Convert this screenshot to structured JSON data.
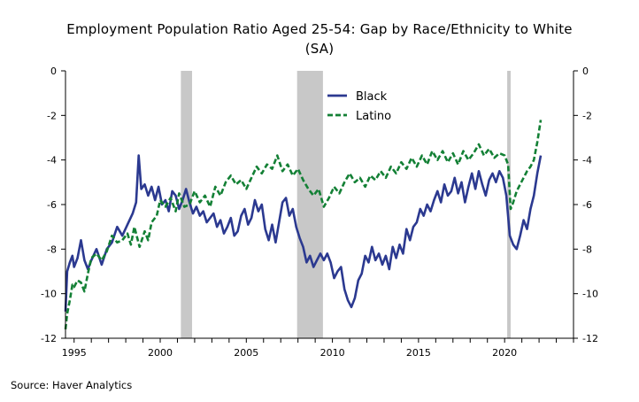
{
  "chart_data": {
    "type": "line",
    "title_line1": "Employment Population Ratio Aged 25-54: Gap by Race/Ethnicity to White",
    "title_line2": "(SA)",
    "source": "Source:  Haver Analytics",
    "ylim": [
      -12,
      0
    ],
    "y_ticks": [
      0,
      -2,
      -4,
      -6,
      -8,
      -10,
      -12
    ],
    "xlim": [
      1994.5,
      2024.0
    ],
    "x_ticks": [
      1995,
      2000,
      2005,
      2010,
      2015,
      2020
    ],
    "grid": false,
    "legend_placement": "top-center",
    "recessions": [
      [
        2001.2,
        2001.85
      ],
      [
        2007.95,
        2009.45
      ],
      [
        2020.15,
        2020.35
      ]
    ],
    "recession_color": "#c8c8c8",
    "series": [
      {
        "name": "Black",
        "color": "#2b3990",
        "dash": "solid",
        "points": [
          [
            1994.5,
            -10.8
          ],
          [
            1994.6,
            -9.0
          ],
          [
            1994.75,
            -8.6
          ],
          [
            1994.9,
            -8.3
          ],
          [
            1995.0,
            -8.8
          ],
          [
            1995.2,
            -8.4
          ],
          [
            1995.4,
            -7.6
          ],
          [
            1995.6,
            -8.5
          ],
          [
            1995.8,
            -8.9
          ],
          [
            1996.0,
            -8.5
          ],
          [
            1996.3,
            -8.0
          ],
          [
            1996.6,
            -8.7
          ],
          [
            1996.9,
            -8.0
          ],
          [
            1997.2,
            -7.7
          ],
          [
            1997.5,
            -7.0
          ],
          [
            1997.8,
            -7.4
          ],
          [
            1998.1,
            -6.9
          ],
          [
            1998.4,
            -6.4
          ],
          [
            1998.6,
            -5.9
          ],
          [
            1998.75,
            -3.8
          ],
          [
            1998.9,
            -5.3
          ],
          [
            1999.1,
            -5.1
          ],
          [
            1999.3,
            -5.6
          ],
          [
            1999.5,
            -5.2
          ],
          [
            1999.7,
            -5.8
          ],
          [
            1999.9,
            -5.2
          ],
          [
            2000.1,
            -6.0
          ],
          [
            2000.3,
            -5.8
          ],
          [
            2000.5,
            -6.3
          ],
          [
            2000.7,
            -5.4
          ],
          [
            2000.9,
            -5.6
          ],
          [
            2001.1,
            -6.2
          ],
          [
            2001.3,
            -5.8
          ],
          [
            2001.5,
            -5.3
          ],
          [
            2001.7,
            -5.9
          ],
          [
            2001.9,
            -6.4
          ],
          [
            2002.1,
            -6.1
          ],
          [
            2002.3,
            -6.5
          ],
          [
            2002.5,
            -6.3
          ],
          [
            2002.7,
            -6.8
          ],
          [
            2002.9,
            -6.6
          ],
          [
            2003.1,
            -6.4
          ],
          [
            2003.3,
            -7.0
          ],
          [
            2003.5,
            -6.7
          ],
          [
            2003.7,
            -7.3
          ],
          [
            2003.9,
            -7.0
          ],
          [
            2004.1,
            -6.6
          ],
          [
            2004.3,
            -7.4
          ],
          [
            2004.5,
            -7.2
          ],
          [
            2004.7,
            -6.5
          ],
          [
            2004.9,
            -6.2
          ],
          [
            2005.1,
            -6.9
          ],
          [
            2005.3,
            -6.6
          ],
          [
            2005.5,
            -5.8
          ],
          [
            2005.7,
            -6.3
          ],
          [
            2005.9,
            -6.0
          ],
          [
            2006.1,
            -7.1
          ],
          [
            2006.3,
            -7.6
          ],
          [
            2006.5,
            -6.9
          ],
          [
            2006.7,
            -7.7
          ],
          [
            2006.9,
            -6.8
          ],
          [
            2007.1,
            -5.9
          ],
          [
            2007.3,
            -5.7
          ],
          [
            2007.5,
            -6.5
          ],
          [
            2007.7,
            -6.2
          ],
          [
            2007.9,
            -7.0
          ],
          [
            2008.1,
            -7.5
          ],
          [
            2008.3,
            -7.9
          ],
          [
            2008.5,
            -8.6
          ],
          [
            2008.7,
            -8.3
          ],
          [
            2008.9,
            -8.8
          ],
          [
            2009.1,
            -8.5
          ],
          [
            2009.3,
            -8.2
          ],
          [
            2009.5,
            -8.5
          ],
          [
            2009.7,
            -8.2
          ],
          [
            2009.9,
            -8.6
          ],
          [
            2010.1,
            -9.3
          ],
          [
            2010.3,
            -9.0
          ],
          [
            2010.5,
            -8.8
          ],
          [
            2010.7,
            -9.8
          ],
          [
            2010.9,
            -10.3
          ],
          [
            2011.1,
            -10.6
          ],
          [
            2011.3,
            -10.2
          ],
          [
            2011.5,
            -9.4
          ],
          [
            2011.7,
            -9.1
          ],
          [
            2011.9,
            -8.3
          ],
          [
            2012.1,
            -8.6
          ],
          [
            2012.3,
            -7.9
          ],
          [
            2012.5,
            -8.5
          ],
          [
            2012.7,
            -8.2
          ],
          [
            2012.9,
            -8.7
          ],
          [
            2013.1,
            -8.3
          ],
          [
            2013.3,
            -8.9
          ],
          [
            2013.5,
            -7.9
          ],
          [
            2013.7,
            -8.4
          ],
          [
            2013.9,
            -7.8
          ],
          [
            2014.1,
            -8.2
          ],
          [
            2014.3,
            -7.1
          ],
          [
            2014.5,
            -7.6
          ],
          [
            2014.7,
            -7.0
          ],
          [
            2014.9,
            -6.8
          ],
          [
            2015.1,
            -6.2
          ],
          [
            2015.3,
            -6.5
          ],
          [
            2015.5,
            -6.0
          ],
          [
            2015.7,
            -6.3
          ],
          [
            2015.9,
            -5.8
          ],
          [
            2016.1,
            -5.4
          ],
          [
            2016.3,
            -5.9
          ],
          [
            2016.5,
            -5.1
          ],
          [
            2016.7,
            -5.6
          ],
          [
            2016.9,
            -5.4
          ],
          [
            2017.1,
            -4.8
          ],
          [
            2017.3,
            -5.5
          ],
          [
            2017.5,
            -5.0
          ],
          [
            2017.7,
            -5.9
          ],
          [
            2017.9,
            -5.2
          ],
          [
            2018.1,
            -4.6
          ],
          [
            2018.3,
            -5.3
          ],
          [
            2018.5,
            -4.5
          ],
          [
            2018.7,
            -5.1
          ],
          [
            2018.9,
            -5.6
          ],
          [
            2019.1,
            -4.9
          ],
          [
            2019.3,
            -4.6
          ],
          [
            2019.5,
            -5.0
          ],
          [
            2019.7,
            -4.5
          ],
          [
            2019.9,
            -4.8
          ],
          [
            2020.1,
            -5.6
          ],
          [
            2020.3,
            -7.4
          ],
          [
            2020.5,
            -7.8
          ],
          [
            2020.7,
            -8.0
          ],
          [
            2020.9,
            -7.4
          ],
          [
            2021.1,
            -6.7
          ],
          [
            2021.3,
            -7.1
          ],
          [
            2021.5,
            -6.2
          ],
          [
            2021.7,
            -5.6
          ],
          [
            2021.9,
            -4.6
          ],
          [
            2022.1,
            -3.8
          ]
        ]
      },
      {
        "name": "Latino",
        "color": "#138035",
        "dash": "dashed",
        "points": [
          [
            1994.5,
            -11.6
          ],
          [
            1994.6,
            -10.9
          ],
          [
            1994.75,
            -10.3
          ],
          [
            1994.9,
            -9.6
          ],
          [
            1995.0,
            -9.7
          ],
          [
            1995.2,
            -9.4
          ],
          [
            1995.4,
            -9.5
          ],
          [
            1995.6,
            -9.9
          ],
          [
            1995.8,
            -9.1
          ],
          [
            1996.0,
            -8.4
          ],
          [
            1996.3,
            -8.2
          ],
          [
            1996.6,
            -8.5
          ],
          [
            1996.9,
            -8.1
          ],
          [
            1997.2,
            -7.4
          ],
          [
            1997.5,
            -7.7
          ],
          [
            1997.8,
            -7.6
          ],
          [
            1998.1,
            -7.3
          ],
          [
            1998.3,
            -7.8
          ],
          [
            1998.5,
            -7.0
          ],
          [
            1998.8,
            -7.9
          ],
          [
            1999.1,
            -7.2
          ],
          [
            1999.3,
            -7.6
          ],
          [
            1999.5,
            -6.8
          ],
          [
            1999.8,
            -6.5
          ],
          [
            2000.0,
            -5.8
          ],
          [
            2000.3,
            -6.1
          ],
          [
            2000.6,
            -5.7
          ],
          [
            2000.9,
            -6.3
          ],
          [
            2001.1,
            -5.5
          ],
          [
            2001.4,
            -6.1
          ],
          [
            2001.7,
            -6.0
          ],
          [
            2002.0,
            -5.4
          ],
          [
            2002.3,
            -5.9
          ],
          [
            2002.6,
            -5.6
          ],
          [
            2002.9,
            -6.1
          ],
          [
            2003.2,
            -5.2
          ],
          [
            2003.5,
            -5.6
          ],
          [
            2003.8,
            -5.0
          ],
          [
            2004.1,
            -4.7
          ],
          [
            2004.4,
            -5.1
          ],
          [
            2004.7,
            -4.9
          ],
          [
            2005.0,
            -5.3
          ],
          [
            2005.3,
            -4.8
          ],
          [
            2005.6,
            -4.3
          ],
          [
            2005.9,
            -4.6
          ],
          [
            2006.2,
            -4.2
          ],
          [
            2006.5,
            -4.4
          ],
          [
            2006.8,
            -3.8
          ],
          [
            2007.1,
            -4.5
          ],
          [
            2007.4,
            -4.2
          ],
          [
            2007.7,
            -4.7
          ],
          [
            2008.0,
            -4.4
          ],
          [
            2008.3,
            -4.9
          ],
          [
            2008.6,
            -5.3
          ],
          [
            2008.9,
            -5.6
          ],
          [
            2009.2,
            -5.3
          ],
          [
            2009.5,
            -6.1
          ],
          [
            2009.8,
            -5.7
          ],
          [
            2010.1,
            -5.2
          ],
          [
            2010.4,
            -5.5
          ],
          [
            2010.7,
            -5.0
          ],
          [
            2011.0,
            -4.6
          ],
          [
            2011.3,
            -5.0
          ],
          [
            2011.6,
            -4.8
          ],
          [
            2011.9,
            -5.2
          ],
          [
            2012.2,
            -4.7
          ],
          [
            2012.5,
            -4.9
          ],
          [
            2012.8,
            -4.5
          ],
          [
            2013.1,
            -4.8
          ],
          [
            2013.4,
            -4.3
          ],
          [
            2013.7,
            -4.6
          ],
          [
            2014.0,
            -4.1
          ],
          [
            2014.3,
            -4.4
          ],
          [
            2014.6,
            -3.9
          ],
          [
            2014.9,
            -4.3
          ],
          [
            2015.2,
            -3.8
          ],
          [
            2015.5,
            -4.2
          ],
          [
            2015.8,
            -3.6
          ],
          [
            2016.1,
            -4.0
          ],
          [
            2016.4,
            -3.6
          ],
          [
            2016.7,
            -4.1
          ],
          [
            2017.0,
            -3.7
          ],
          [
            2017.3,
            -4.2
          ],
          [
            2017.6,
            -3.6
          ],
          [
            2017.9,
            -4.0
          ],
          [
            2018.2,
            -3.7
          ],
          [
            2018.5,
            -3.3
          ],
          [
            2018.8,
            -3.8
          ],
          [
            2019.1,
            -3.5
          ],
          [
            2019.4,
            -3.9
          ],
          [
            2019.7,
            -3.7
          ],
          [
            2020.0,
            -3.8
          ],
          [
            2020.2,
            -4.2
          ],
          [
            2020.35,
            -6.2
          ],
          [
            2020.5,
            -5.9
          ],
          [
            2020.7,
            -5.4
          ],
          [
            2020.9,
            -5.1
          ],
          [
            2021.1,
            -4.8
          ],
          [
            2021.3,
            -4.5
          ],
          [
            2021.5,
            -4.3
          ],
          [
            2021.7,
            -4.0
          ],
          [
            2021.9,
            -3.2
          ],
          [
            2022.1,
            -2.2
          ]
        ]
      }
    ]
  }
}
